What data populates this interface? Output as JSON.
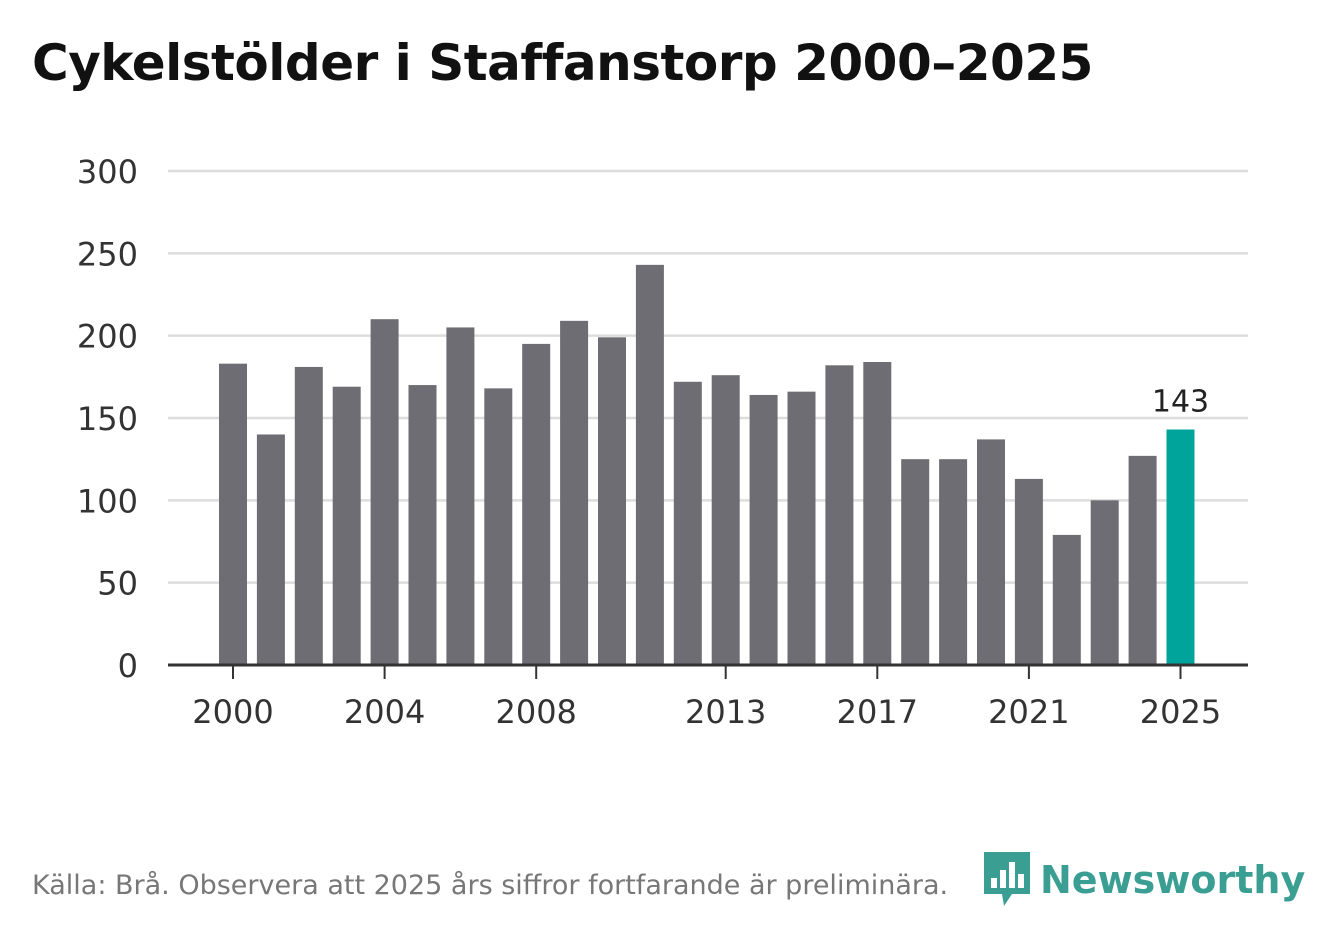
{
  "chart_data": {
    "type": "bar",
    "title": "Cykelstölder i Staffanstorp 2000–2025",
    "xlabel": "",
    "ylabel": "",
    "ylim": [
      0,
      300
    ],
    "yticks": [
      0,
      50,
      100,
      150,
      200,
      250,
      300
    ],
    "xtick_labels": [
      "2000",
      "2004",
      "2008",
      "2013",
      "2017",
      "2021",
      "2025"
    ],
    "categories": [
      "2000",
      "2001",
      "2002",
      "2003",
      "2004",
      "2005",
      "2006",
      "2007",
      "2008",
      "2009",
      "2010",
      "2011",
      "2012",
      "2013",
      "2014",
      "2015",
      "2016",
      "2017",
      "2018",
      "2019",
      "2020",
      "2021",
      "2022",
      "2023",
      "2024",
      "2025"
    ],
    "values": [
      183,
      140,
      181,
      169,
      210,
      170,
      205,
      168,
      195,
      209,
      199,
      243,
      172,
      176,
      164,
      166,
      182,
      184,
      125,
      125,
      137,
      113,
      79,
      100,
      127,
      143
    ],
    "highlight": {
      "category": "2025",
      "label": "143"
    },
    "grid": true,
    "colors": {
      "bar": "#6e6d73",
      "highlight": "#00a49a",
      "grid": "#dddddd",
      "axis": "#333333"
    }
  },
  "source": "Källa: Brå. Observera att 2025 års siffror fortfarande är preliminära.",
  "logo": {
    "name": "Newsworthy",
    "icon": "bar-chart-logo-icon",
    "color": "#3a9e93"
  }
}
